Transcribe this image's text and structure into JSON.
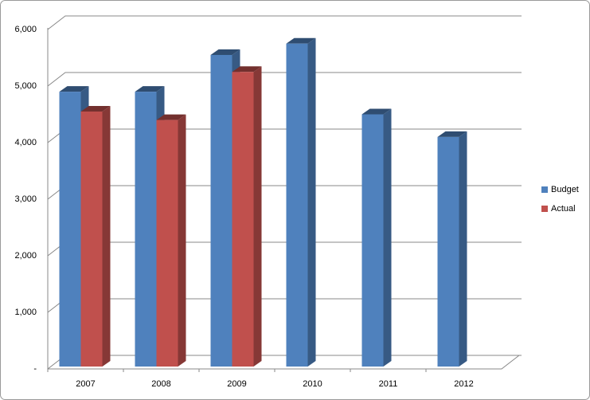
{
  "chart_data": {
    "type": "bar3d",
    "categories": [
      "2007",
      "2008",
      "2009",
      "2010",
      "2011",
      "2012"
    ],
    "series": [
      {
        "name": "Budget",
        "color": "#4f81bd",
        "values": [
          4900,
          4900,
          5550,
          5750,
          4500,
          4100
        ]
      },
      {
        "name": "Actual",
        "color": "#c0504d",
        "values": [
          4550,
          4400,
          5250,
          null,
          null,
          null
        ]
      }
    ],
    "ylim": [
      0,
      6000
    ],
    "yticks": [
      {
        "value": 0,
        "label": "-"
      },
      {
        "value": 1000,
        "label": "1,000"
      },
      {
        "value": 2000,
        "label": "2,000"
      },
      {
        "value": 3000,
        "label": "3,000"
      },
      {
        "value": 4000,
        "label": "4,000"
      },
      {
        "value": 5000,
        "label": "5,000"
      },
      {
        "value": 6000,
        "label": "6,000"
      }
    ],
    "grid": true,
    "legend": "right"
  }
}
